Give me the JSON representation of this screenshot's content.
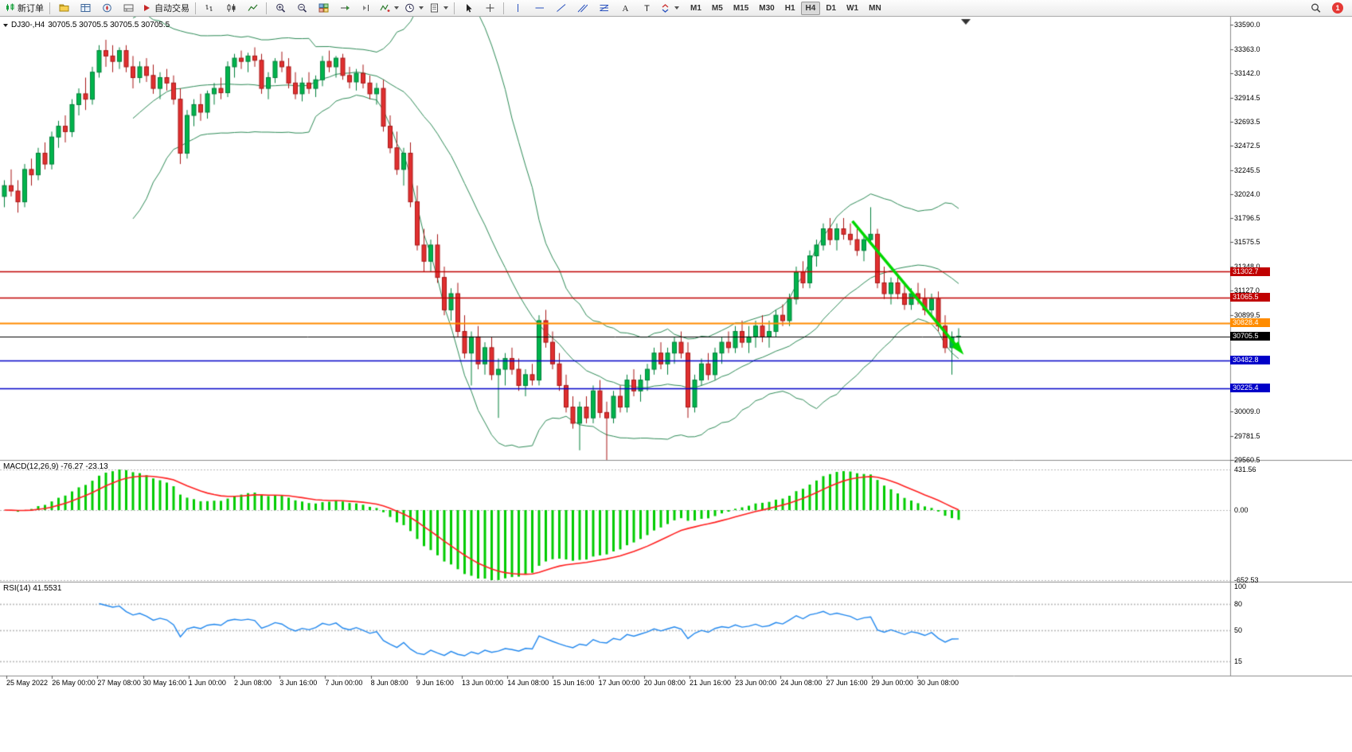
{
  "toolbar": {
    "items": [
      {
        "kind": "button",
        "name": "new-order-button",
        "icon": "order-candles",
        "label": "新订单"
      },
      {
        "kind": "sep"
      },
      {
        "kind": "button",
        "name": "profiles-button",
        "icon": "profile"
      },
      {
        "kind": "button",
        "name": "market-watch-button",
        "icon": "marketwatch"
      },
      {
        "kind": "button",
        "name": "navigator-button",
        "icon": "navigator"
      },
      {
        "kind": "button",
        "name": "terminal-button",
        "icon": "terminal"
      },
      {
        "kind": "button",
        "name": "auto-trading-button",
        "icon": "autotrade",
        "label": "自动交易"
      },
      {
        "kind": "sep"
      },
      {
        "kind": "button",
        "name": "bar-chart-button",
        "icon": "barchart"
      },
      {
        "kind": "button",
        "name": "candlestick-chart-button",
        "icon": "candlechart"
      },
      {
        "kind": "button",
        "name": "line-chart-button",
        "icon": "linechart"
      },
      {
        "kind": "sep"
      },
      {
        "kind": "button",
        "name": "zoom-in-button",
        "icon": "zoomin"
      },
      {
        "kind": "button",
        "name": "zoom-out-button",
        "icon": "zoomout"
      },
      {
        "kind": "button",
        "name": "tile-windows-button",
        "icon": "tile"
      },
      {
        "kind": "button",
        "name": "auto-scroll-button",
        "icon": "autoscroll"
      },
      {
        "kind": "button",
        "name": "chart-shift-button",
        "icon": "shift"
      },
      {
        "kind": "button",
        "name": "indicators-button",
        "icon": "indicators",
        "dropdown": true
      },
      {
        "kind": "button",
        "name": "periods-button",
        "icon": "clock",
        "dropdown": true
      },
      {
        "kind": "button",
        "name": "templates-button",
        "icon": "template",
        "dropdown": true
      },
      {
        "kind": "sep"
      },
      {
        "kind": "button",
        "name": "cursor-button",
        "icon": "cursor"
      },
      {
        "kind": "button",
        "name": "crosshair-button",
        "icon": "crosshair"
      },
      {
        "kind": "sep"
      },
      {
        "kind": "button",
        "name": "vertical-line-button",
        "icon": "vline"
      },
      {
        "kind": "button",
        "name": "horizontal-line-button",
        "icon": "hline"
      },
      {
        "kind": "button",
        "name": "trendline-button",
        "icon": "trend"
      },
      {
        "kind": "button",
        "name": "equidistant-channel-button",
        "icon": "channel"
      },
      {
        "kind": "button",
        "name": "fibonacci-button",
        "icon": "fibo"
      },
      {
        "kind": "button",
        "name": "text-button",
        "icon": "text"
      },
      {
        "kind": "button",
        "name": "text-label-button",
        "icon": "label"
      },
      {
        "kind": "button",
        "name": "arrows-button",
        "icon": "arrowsel",
        "dropdown": true
      }
    ],
    "timeframes": [
      "M1",
      "M5",
      "M15",
      "M30",
      "H1",
      "H4",
      "D1",
      "W1",
      "MN"
    ],
    "active_timeframe": "H4",
    "notification_count": "1"
  },
  "chart": {
    "symbol": "DJ30-,H4",
    "ohlc_line": "30705.5 30705.5 30705.5 30705.5",
    "price_ticks": [
      "33590.0",
      "33363.0",
      "33142.0",
      "32914.5",
      "32693.5",
      "32472.5",
      "32245.5",
      "32024.0",
      "31796.5",
      "31575.5",
      "31348.0",
      "31127.0",
      "30899.5",
      "30009.0",
      "29781.5",
      "29560.5"
    ],
    "levels": [
      {
        "label": "31302.7",
        "price": 31302.7,
        "color": "#c00000",
        "width": 1.4,
        "role": "resistance"
      },
      {
        "label": "31065.5",
        "price": 31065.5,
        "color": "#c00000",
        "width": 1.4,
        "role": "resistance"
      },
      {
        "label": "30828.4",
        "price": 30828.4,
        "color": "#ff8c00",
        "width": 2.2,
        "role": "pivot"
      },
      {
        "label": "30705.5",
        "price": 30705.5,
        "color": "#000000",
        "width": 1,
        "role": "current"
      },
      {
        "label": "30482.8",
        "price": 30482.8,
        "color": "#0000c8",
        "width": 1.6,
        "role": "support"
      },
      {
        "label": "30225.4",
        "price": 30225.4,
        "color": "#0000c8",
        "width": 1.6,
        "role": "support"
      }
    ],
    "dates": [
      "25 May 2022",
      "26 May 00:00",
      "27 May 08:00",
      "30 May 16:00",
      "1 Jun 00:00",
      "2 Jun 08:00",
      "3 Jun 16:00",
      "7 Jun 00:00",
      "8 Jun 08:00",
      "9 Jun 16:00",
      "13 Jun 00:00",
      "14 Jun 08:00",
      "15 Jun 16:00",
      "17 Jun 00:00",
      "20 Jun 08:00",
      "21 Jun 16:00",
      "23 Jun 00:00",
      "24 Jun 08:00",
      "27 Jun 16:00",
      "29 Jun 00:00",
      "30 Jun 08:00"
    ]
  },
  "chart_data": {
    "type": "candlestick",
    "title": "DJ30-,H4",
    "timeframe": "H4",
    "y_range": [
      29560.5,
      33590.0
    ],
    "x_range": [
      "25 May 2022",
      "30 Jun 2022 08:00"
    ],
    "overlays": {
      "bollinger": {
        "period": 20,
        "deviation": 2
      }
    },
    "trend_arrow": {
      "from": {
        "index": 125.3,
        "price": 31771
      },
      "to": {
        "index": 141,
        "price": 30592
      }
    },
    "candles": [
      [
        32000,
        32150,
        31900,
        32100
      ],
      [
        32100,
        32250,
        32000,
        32050
      ],
      [
        32050,
        32150,
        31850,
        31950
      ],
      [
        31950,
        32300,
        31900,
        32250
      ],
      [
        32250,
        32350,
        32100,
        32200
      ],
      [
        32200,
        32450,
        32150,
        32400
      ],
      [
        32400,
        32500,
        32250,
        32300
      ],
      [
        32300,
        32600,
        32250,
        32550
      ],
      [
        32550,
        32700,
        32450,
        32650
      ],
      [
        32650,
        32750,
        32500,
        32600
      ],
      [
        32600,
        32900,
        32550,
        32850
      ],
      [
        32850,
        33000,
        32750,
        32950
      ],
      [
        32950,
        33100,
        32800,
        32900
      ],
      [
        32900,
        33200,
        32850,
        33150
      ],
      [
        33150,
        33400,
        33100,
        33350
      ],
      [
        33350,
        33450,
        33200,
        33300
      ],
      [
        33300,
        33400,
        33150,
        33250
      ],
      [
        33250,
        33380,
        33180,
        33350
      ],
      [
        33350,
        33400,
        33150,
        33200
      ],
      [
        33200,
        33300,
        33000,
        33100
      ],
      [
        33100,
        33250,
        33050,
        33200
      ],
      [
        33200,
        33280,
        33060,
        33120
      ],
      [
        33120,
        33220,
        32950,
        33000
      ],
      [
        33000,
        33150,
        32900,
        33100
      ],
      [
        33100,
        33180,
        32980,
        33050
      ],
      [
        33050,
        33120,
        32850,
        32900
      ],
      [
        32900,
        33000,
        32300,
        32400
      ],
      [
        32400,
        32800,
        32350,
        32750
      ],
      [
        32750,
        32900,
        32650,
        32850
      ],
      [
        32850,
        32950,
        32700,
        32780
      ],
      [
        32780,
        32980,
        32720,
        32950
      ],
      [
        32950,
        33050,
        32850,
        33000
      ],
      [
        33000,
        33100,
        32900,
        32960
      ],
      [
        32960,
        33250,
        32920,
        33200
      ],
      [
        33200,
        33320,
        33100,
        33280
      ],
      [
        33280,
        33350,
        33180,
        33250
      ],
      [
        33250,
        33330,
        33150,
        33300
      ],
      [
        33300,
        33380,
        33200,
        33260
      ],
      [
        33260,
        33320,
        32950,
        33000
      ],
      [
        33000,
        33150,
        32900,
        33100
      ],
      [
        33100,
        33280,
        33050,
        33250
      ],
      [
        33250,
        33340,
        33150,
        33200
      ],
      [
        33200,
        33280,
        33000,
        33050
      ],
      [
        33050,
        33150,
        32900,
        32950
      ],
      [
        32950,
        33100,
        32880,
        33050
      ],
      [
        33050,
        33150,
        32950,
        33000
      ],
      [
        33000,
        33120,
        32920,
        33080
      ],
      [
        33080,
        33300,
        33020,
        33250
      ],
      [
        33250,
        33350,
        33150,
        33200
      ],
      [
        33200,
        33300,
        33100,
        33280
      ],
      [
        33280,
        33320,
        33080,
        33120
      ],
      [
        33120,
        33200,
        33000,
        33060
      ],
      [
        33060,
        33180,
        32980,
        33140
      ],
      [
        33140,
        33220,
        33000,
        33050
      ],
      [
        33050,
        33120,
        32900,
        32950
      ],
      [
        32950,
        33050,
        32850,
        33000
      ],
      [
        33000,
        33080,
        32600,
        32650
      ],
      [
        32650,
        32750,
        32400,
        32450
      ],
      [
        32450,
        32600,
        32200,
        32250
      ],
      [
        32250,
        32450,
        32100,
        32400
      ],
      [
        32400,
        32500,
        31900,
        31950
      ],
      [
        31950,
        32100,
        31500,
        31550
      ],
      [
        31550,
        31700,
        31300,
        31400
      ],
      [
        31400,
        31600,
        31300,
        31550
      ],
      [
        31550,
        31650,
        31200,
        31250
      ],
      [
        31250,
        31350,
        30900,
        30950
      ],
      [
        30950,
        31150,
        30850,
        31100
      ],
      [
        31100,
        31200,
        30700,
        30750
      ],
      [
        30750,
        30900,
        30500,
        30550
      ],
      [
        30550,
        30750,
        30250,
        30700
      ],
      [
        30700,
        30800,
        30400,
        30450
      ],
      [
        30450,
        30650,
        30350,
        30600
      ],
      [
        30600,
        30700,
        30300,
        30350
      ],
      [
        30350,
        30500,
        29950,
        30400
      ],
      [
        30400,
        30550,
        30250,
        30500
      ],
      [
        30500,
        30600,
        30350,
        30400
      ],
      [
        30400,
        30500,
        30200,
        30250
      ],
      [
        30250,
        30400,
        30150,
        30350
      ],
      [
        30350,
        30450,
        30250,
        30300
      ],
      [
        30300,
        30900,
        30250,
        30850
      ],
      [
        30850,
        30950,
        30600,
        30650
      ],
      [
        30650,
        30750,
        30400,
        30450
      ],
      [
        30450,
        30550,
        30200,
        30250
      ],
      [
        30250,
        30350,
        30000,
        30050
      ],
      [
        30050,
        30150,
        29850,
        29900
      ],
      [
        29900,
        30100,
        29650,
        30050
      ],
      [
        30050,
        30150,
        29900,
        29950
      ],
      [
        29950,
        30250,
        29900,
        30200
      ],
      [
        30200,
        30300,
        29950,
        30000
      ],
      [
        30000,
        30100,
        29560,
        29950
      ],
      [
        29950,
        30200,
        29900,
        30150
      ],
      [
        30150,
        30250,
        30000,
        30050
      ],
      [
        30050,
        30350,
        30000,
        30300
      ],
      [
        30300,
        30400,
        30150,
        30200
      ],
      [
        30200,
        30350,
        30100,
        30300
      ],
      [
        30300,
        30450,
        30200,
        30400
      ],
      [
        30400,
        30600,
        30350,
        30550
      ],
      [
        30550,
        30650,
        30400,
        30450
      ],
      [
        30450,
        30600,
        30350,
        30550
      ],
      [
        30550,
        30700,
        30450,
        30650
      ],
      [
        30650,
        30750,
        30500,
        30550
      ],
      [
        30550,
        30650,
        29950,
        30050
      ],
      [
        30050,
        30350,
        30000,
        30300
      ],
      [
        30300,
        30500,
        30250,
        30450
      ],
      [
        30450,
        30550,
        30300,
        30350
      ],
      [
        30350,
        30600,
        30300,
        30550
      ],
      [
        30550,
        30700,
        30450,
        30650
      ],
      [
        30650,
        30750,
        30550,
        30600
      ],
      [
        30600,
        30800,
        30550,
        30750
      ],
      [
        30750,
        30850,
        30600,
        30650
      ],
      [
        30650,
        30800,
        30550,
        30700
      ],
      [
        30700,
        30850,
        30600,
        30800
      ],
      [
        30800,
        30900,
        30650,
        30700
      ],
      [
        30700,
        30850,
        30600,
        30750
      ],
      [
        30750,
        30950,
        30700,
        30900
      ],
      [
        30900,
        31000,
        30800,
        30850
      ],
      [
        30850,
        31100,
        30800,
        31050
      ],
      [
        31050,
        31350,
        31000,
        31300
      ],
      [
        31300,
        31400,
        31150,
        31200
      ],
      [
        31200,
        31500,
        31150,
        31450
      ],
      [
        31450,
        31600,
        31350,
        31550
      ],
      [
        31550,
        31750,
        31500,
        31700
      ],
      [
        31700,
        31800,
        31550,
        31600
      ],
      [
        31600,
        31750,
        31500,
        31700
      ],
      [
        31700,
        31800,
        31600,
        31650
      ],
      [
        31650,
        31750,
        31550,
        31600
      ],
      [
        31600,
        31700,
        31450,
        31500
      ],
      [
        31500,
        31650,
        31400,
        31600
      ],
      [
        31600,
        31900,
        31550,
        31650
      ],
      [
        31650,
        31700,
        31150,
        31200
      ],
      [
        31200,
        31350,
        31050,
        31100
      ],
      [
        31100,
        31250,
        31000,
        31200
      ],
      [
        31200,
        31280,
        31050,
        31100
      ],
      [
        31100,
        31200,
        30950,
        31000
      ],
      [
        31000,
        31150,
        30950,
        31100
      ],
      [
        31100,
        31200,
        31000,
        31050
      ],
      [
        31050,
        31150,
        30900,
        30950
      ],
      [
        30950,
        31100,
        30900,
        31050
      ],
      [
        31050,
        31120,
        30750,
        30800
      ],
      [
        30800,
        30900,
        30550,
        30600
      ],
      [
        30600,
        30750,
        30350,
        30700
      ],
      [
        30700,
        30780,
        30600,
        30705.5
      ]
    ]
  },
  "macd": {
    "label": "MACD(12,26,9) -76.27 -23.13",
    "params": "12,26,9",
    "macd_value": "-76.27",
    "signal_value": "-23.13",
    "axis_labels": [
      "431.56",
      "0.00",
      "-652.53"
    ]
  },
  "rsi": {
    "label": "RSI(14) 41.5531",
    "period": "14",
    "value": "41.5531",
    "axis_labels": [
      "100",
      "80",
      "50",
      "15"
    ],
    "levels": [
      80,
      50,
      15
    ]
  },
  "colors": {
    "up": "#00b44c",
    "up_stroke": "#00803a",
    "down": "#e03030",
    "down_stroke": "#a81616",
    "bollinger": "#2e8b57",
    "macd_hist": "#00cc00",
    "macd_signal": "#ff2020",
    "rsi_line": "#2288ee",
    "grid_dotted": "#b8b8b8",
    "separator": "#8c8c8c",
    "arrow": "#00d800"
  }
}
